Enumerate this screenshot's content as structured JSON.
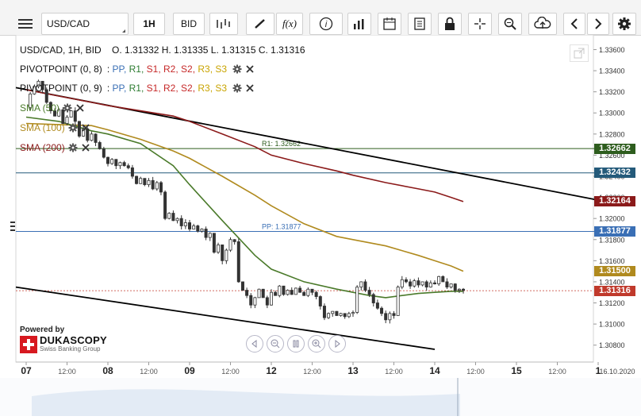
{
  "toolbar": {
    "symbol": "USD/CAD",
    "timeframe": "1H",
    "price_type": "BID"
  },
  "header": {
    "instrument_line": "USD/CAD, 1H, BID",
    "ohlc": "O. 1.31332 H. 1.31335 L. 1.31315 C. 1.31316"
  },
  "indicators": [
    {
      "name": "PIVOTPOINT (0, 8)",
      "levels": [
        "PP,",
        "R1,",
        "S1,",
        "R2,",
        "S2,",
        "R3,",
        "S3"
      ]
    },
    {
      "name": "PIVOTPOINT (0, 9)",
      "levels": [
        "PP,",
        "R1,",
        "S1,",
        "R2,",
        "S2,",
        "R3,",
        "S3"
      ]
    },
    {
      "name": "SMA (50)",
      "color": "#4a7a2a"
    },
    {
      "name": "SMA (100)",
      "color": "#b08a1e"
    },
    {
      "name": "SMA (200)",
      "color": "#8b1a1a"
    }
  ],
  "level_colors": {
    "PP": "#3a6fb5",
    "R1": "#2e7d32",
    "S1": "#c62828",
    "R2": "#c62828",
    "S2": "#c62828",
    "R3": "#c9a400",
    "S3": "#c9a400"
  },
  "annotations": {
    "r1": "R1: 1.32662",
    "pp": "PP: 1.31877"
  },
  "price_labels": [
    {
      "value": "1.32662",
      "color": "#2e5d1e"
    },
    {
      "value": "1.32432",
      "color": "#245a7a"
    },
    {
      "value": "1.32164",
      "color": "#8b1a1a"
    },
    {
      "value": "1.31877",
      "color": "#3a6fb5"
    },
    {
      "value": "1.31500",
      "color": "#b08a1e"
    },
    {
      "value": "1.31316",
      "color": "#c0392b"
    }
  ],
  "brand": {
    "powered": "Powered by",
    "name": "DUKASCOPY",
    "sub": "Swiss Banking Group"
  },
  "chart_data": {
    "type": "candlestick",
    "symbol": "USD/CAD",
    "interval": "1H",
    "y_ticks": [
      "1.33600",
      "1.33400",
      "1.33200",
      "1.33000",
      "1.32800",
      "1.32600",
      "1.32400",
      "1.32200",
      "1.32000",
      "1.31800",
      "1.31600",
      "1.31400",
      "1.31200",
      "1.31000",
      "1.30800"
    ],
    "ylim": [
      1.307,
      1.3369
    ],
    "x_ticks": [
      {
        "label": "07",
        "major": true,
        "day": 0
      },
      {
        "label": "12:00",
        "major": false,
        "day": 0.5
      },
      {
        "label": "08",
        "major": true,
        "day": 1
      },
      {
        "label": "12:00",
        "major": false,
        "day": 1.5
      },
      {
        "label": "09",
        "major": true,
        "day": 2
      },
      {
        "label": "12:00",
        "major": false,
        "day": 2.5
      },
      {
        "label": "12",
        "major": true,
        "day": 3
      },
      {
        "label": "12:00",
        "major": false,
        "day": 3.5
      },
      {
        "label": "13",
        "major": true,
        "day": 4
      },
      {
        "label": "12:00",
        "major": false,
        "day": 4.5
      },
      {
        "label": "14",
        "major": true,
        "day": 5
      },
      {
        "label": "12:00",
        "major": false,
        "day": 5.5
      },
      {
        "label": "15",
        "major": true,
        "day": 6
      },
      {
        "label": "12:00",
        "major": false,
        "day": 6.5
      },
      {
        "label": "1",
        "major": true,
        "day": 7
      }
    ],
    "x_end_label": "16.10.2020",
    "close_path": [
      [
        0.0,
        1.3305
      ],
      [
        0.05,
        1.3318
      ],
      [
        0.1,
        1.3325
      ],
      [
        0.15,
        1.333
      ],
      [
        0.2,
        1.3322
      ],
      [
        0.25,
        1.331
      ],
      [
        0.3,
        1.3302
      ],
      [
        0.35,
        1.3297
      ],
      [
        0.4,
        1.3303
      ],
      [
        0.45,
        1.329
      ],
      [
        0.5,
        1.3296
      ],
      [
        0.55,
        1.3302
      ],
      [
        0.6,
        1.3292
      ],
      [
        0.65,
        1.3278
      ],
      [
        0.7,
        1.3285
      ],
      [
        0.75,
        1.3274
      ],
      [
        0.8,
        1.328
      ],
      [
        0.85,
        1.3272
      ],
      [
        0.9,
        1.3266
      ],
      [
        0.95,
        1.3258
      ],
      [
        1.0,
        1.3252
      ],
      [
        1.05,
        1.3256
      ],
      [
        1.1,
        1.325
      ],
      [
        1.15,
        1.3253
      ],
      [
        1.2,
        1.325
      ],
      [
        1.25,
        1.3248
      ],
      [
        1.3,
        1.324
      ],
      [
        1.35,
        1.3233
      ],
      [
        1.4,
        1.3238
      ],
      [
        1.45,
        1.3232
      ],
      [
        1.5,
        1.3236
      ],
      [
        1.55,
        1.3228
      ],
      [
        1.6,
        1.3234
      ],
      [
        1.65,
        1.3225
      ],
      [
        1.7,
        1.32
      ],
      [
        1.75,
        1.3205
      ],
      [
        1.8,
        1.3198
      ],
      [
        1.85,
        1.32
      ],
      [
        1.9,
        1.3193
      ],
      [
        1.95,
        1.3196
      ],
      [
        2.0,
        1.319
      ],
      [
        2.05,
        1.3193
      ],
      [
        2.1,
        1.3188
      ],
      [
        2.15,
        1.319
      ],
      [
        2.2,
        1.3182
      ],
      [
        2.25,
        1.3186
      ],
      [
        2.3,
        1.3168
      ],
      [
        2.35,
        1.3175
      ],
      [
        2.4,
        1.316
      ],
      [
        2.45,
        1.317
      ],
      [
        2.5,
        1.318
      ],
      [
        2.55,
        1.3178
      ],
      [
        2.6,
        1.314
      ],
      [
        2.65,
        1.3132
      ],
      [
        2.7,
        1.3127
      ],
      [
        2.75,
        1.3118
      ],
      [
        2.8,
        1.3125
      ],
      [
        2.85,
        1.3133
      ],
      [
        2.9,
        1.3125
      ],
      [
        2.95,
        1.3118
      ],
      [
        3.0,
        1.313
      ],
      [
        3.05,
        1.3127
      ],
      [
        3.1,
        1.3136
      ],
      [
        3.15,
        1.3128
      ],
      [
        3.2,
        1.3132
      ],
      [
        3.25,
        1.3128
      ],
      [
        3.3,
        1.3134
      ],
      [
        3.35,
        1.313
      ],
      [
        3.4,
        1.3127
      ],
      [
        3.45,
        1.3133
      ],
      [
        3.5,
        1.313
      ],
      [
        3.55,
        1.3126
      ],
      [
        3.6,
        1.3117
      ],
      [
        3.65,
        1.3106
      ],
      [
        3.7,
        1.311
      ],
      [
        3.75,
        1.3112
      ],
      [
        3.8,
        1.3108
      ],
      [
        3.85,
        1.311
      ],
      [
        3.9,
        1.3107
      ],
      [
        3.95,
        1.311
      ],
      [
        4.0,
        1.3111
      ],
      [
        4.05,
        1.3135
      ],
      [
        4.1,
        1.314
      ],
      [
        4.15,
        1.3132
      ],
      [
        4.2,
        1.3128
      ],
      [
        4.25,
        1.312
      ],
      [
        4.3,
        1.3115
      ],
      [
        4.35,
        1.311
      ],
      [
        4.4,
        1.3104
      ],
      [
        4.45,
        1.311
      ],
      [
        4.5,
        1.3108
      ],
      [
        4.55,
        1.3135
      ],
      [
        4.6,
        1.3142
      ],
      [
        4.65,
        1.314
      ],
      [
        4.7,
        1.3136
      ],
      [
        4.75,
        1.3141
      ],
      [
        4.8,
        1.3137
      ],
      [
        4.85,
        1.314
      ],
      [
        4.9,
        1.3135
      ],
      [
        4.95,
        1.3139
      ],
      [
        5.0,
        1.3138
      ],
      [
        5.05,
        1.3145
      ],
      [
        5.1,
        1.314
      ],
      [
        5.15,
        1.3135
      ],
      [
        5.2,
        1.3138
      ],
      [
        5.25,
        1.3132
      ],
      [
        5.3,
        1.3133
      ],
      [
        5.35,
        1.3132
      ]
    ],
    "sma50": [
      [
        0.0,
        1.3296
      ],
      [
        0.4,
        1.3292
      ],
      [
        0.8,
        1.3283
      ],
      [
        1.0,
        1.328
      ],
      [
        1.4,
        1.3271
      ],
      [
        1.8,
        1.325
      ],
      [
        2.0,
        1.3232
      ],
      [
        2.4,
        1.3198
      ],
      [
        2.8,
        1.3165
      ],
      [
        3.0,
        1.3152
      ],
      [
        3.4,
        1.314
      ],
      [
        3.8,
        1.3133
      ],
      [
        4.0,
        1.313
      ],
      [
        4.2,
        1.3127
      ],
      [
        4.4,
        1.3125
      ],
      [
        4.6,
        1.3127
      ],
      [
        4.8,
        1.3129
      ],
      [
        5.0,
        1.313
      ],
      [
        5.2,
        1.3131
      ],
      [
        5.35,
        1.3131
      ]
    ],
    "sma100": [
      [
        0.0,
        1.329
      ],
      [
        0.4,
        1.3289
      ],
      [
        0.8,
        1.3288
      ],
      [
        1.0,
        1.3284
      ],
      [
        1.4,
        1.3275
      ],
      [
        1.8,
        1.3264
      ],
      [
        2.0,
        1.3257
      ],
      [
        2.4,
        1.324
      ],
      [
        2.8,
        1.3222
      ],
      [
        3.0,
        1.3212
      ],
      [
        3.4,
        1.3195
      ],
      [
        3.8,
        1.3183
      ],
      [
        4.0,
        1.318
      ],
      [
        4.4,
        1.3174
      ],
      [
        4.8,
        1.3165
      ],
      [
        5.0,
        1.316
      ],
      [
        5.2,
        1.3155
      ],
      [
        5.35,
        1.315
      ]
    ],
    "sma200": [
      [
        0.0,
        1.3322
      ],
      [
        0.4,
        1.3316
      ],
      [
        0.8,
        1.331
      ],
      [
        1.0,
        1.3307
      ],
      [
        1.4,
        1.3302
      ],
      [
        1.8,
        1.3297
      ],
      [
        2.0,
        1.3292
      ],
      [
        2.4,
        1.328
      ],
      [
        2.8,
        1.3268
      ],
      [
        3.0,
        1.326
      ],
      [
        3.4,
        1.3252
      ],
      [
        3.8,
        1.3245
      ],
      [
        4.0,
        1.3241
      ],
      [
        4.4,
        1.3234
      ],
      [
        4.8,
        1.3228
      ],
      [
        5.0,
        1.3225
      ],
      [
        5.2,
        1.322
      ],
      [
        5.35,
        1.3216
      ]
    ],
    "trend_upper": [
      [
        0.0,
        1.3324
      ],
      [
        7.03,
        1.3217
      ]
    ],
    "trend_lower": [
      [
        0.0,
        1.3135
      ],
      [
        5.0,
        1.3076
      ]
    ],
    "hlines": [
      {
        "value": 1.32662,
        "color": "#2e5d1e"
      },
      {
        "value": 1.32432,
        "color": "#245a7a"
      },
      {
        "value": 1.31877,
        "color": "#3a6fb5"
      }
    ],
    "current_price": 1.31316
  }
}
